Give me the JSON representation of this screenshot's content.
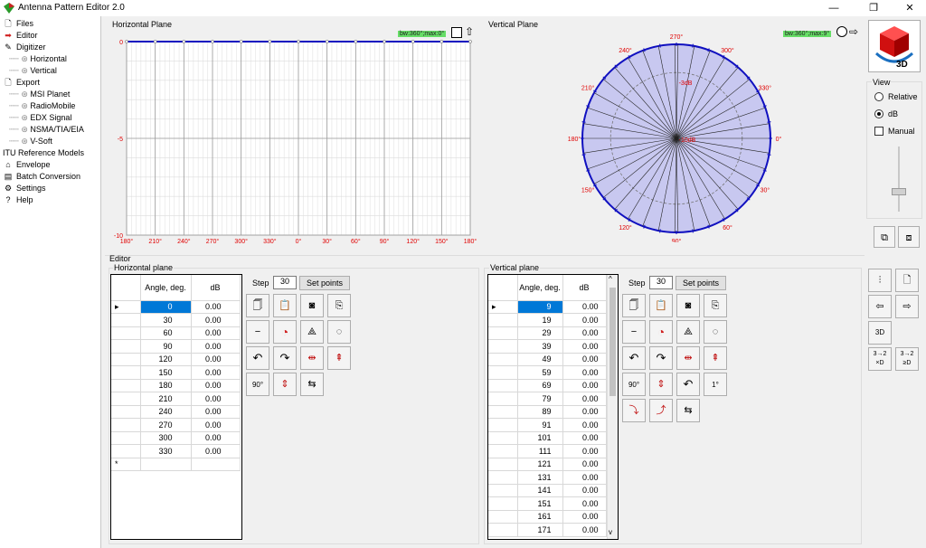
{
  "app": {
    "title": "Antenna Pattern Editor 2.0"
  },
  "window": {
    "min": "—",
    "max": "❐",
    "close": "✕"
  },
  "nav": {
    "files": "Files",
    "editor": "Editor",
    "digitizer": "Digitizer",
    "horizontal": "Horizontal",
    "vertical": "Vertical",
    "export": "Export",
    "msi": "MSI Planet",
    "radiomobile": "RadioMobile",
    "edx": "EDX Signal",
    "nsma": "NSMA/TIA/EIA",
    "vsoft": "V-Soft",
    "itu": "ITU Reference Models",
    "envelope": "Envelope",
    "batch": "Batch Conversion",
    "settings": "Settings",
    "help": "Help"
  },
  "hplane": {
    "title": "Horizontal Plane",
    "badge": "bw:360°;max:0°",
    "y_ticks": [
      "0",
      "-5",
      "-10"
    ],
    "x_ticks": [
      "180°",
      "210°",
      "240°",
      "270°",
      "300°",
      "330°",
      "0°",
      "30°",
      "60°",
      "90°",
      "120°",
      "150°",
      "180°"
    ]
  },
  "vplane": {
    "title": "Vertical Plane",
    "badge": "bw:360°;max:9°",
    "angle_labels": [
      "0°",
      "30°",
      "60°",
      "90°",
      "120°",
      "150°",
      "180°",
      "210°",
      "240°",
      "270°",
      "300°",
      "330°"
    ],
    "ring_labels": [
      "-3dB",
      "-10dB"
    ]
  },
  "view": {
    "title": "View",
    "relative": "Relative",
    "db": "dB",
    "manual": "Manual",
    "three_d": "3D"
  },
  "editor": {
    "title": "Editor",
    "hgroup": "Horizontal plane",
    "vgroup": "Vertical plane",
    "col_angle": "Angle, deg.",
    "col_angle_v": "Angle, deg.",
    "col_db": "dB",
    "step_label": "Step",
    "step_value": "30",
    "set_points": "Set points",
    "h_rows": [
      {
        "angle": "0",
        "db": "0.00"
      },
      {
        "angle": "30",
        "db": "0.00"
      },
      {
        "angle": "60",
        "db": "0.00"
      },
      {
        "angle": "90",
        "db": "0.00"
      },
      {
        "angle": "120",
        "db": "0.00"
      },
      {
        "angle": "150",
        "db": "0.00"
      },
      {
        "angle": "180",
        "db": "0.00"
      },
      {
        "angle": "210",
        "db": "0.00"
      },
      {
        "angle": "240",
        "db": "0.00"
      },
      {
        "angle": "270",
        "db": "0.00"
      },
      {
        "angle": "300",
        "db": "0.00"
      },
      {
        "angle": "330",
        "db": "0.00"
      }
    ],
    "v_rows": [
      {
        "angle": "9",
        "db": "0.00"
      },
      {
        "angle": "19",
        "db": "0.00"
      },
      {
        "angle": "29",
        "db": "0.00"
      },
      {
        "angle": "39",
        "db": "0.00"
      },
      {
        "angle": "49",
        "db": "0.00"
      },
      {
        "angle": "59",
        "db": "0.00"
      },
      {
        "angle": "69",
        "db": "0.00"
      },
      {
        "angle": "79",
        "db": "0.00"
      },
      {
        "angle": "89",
        "db": "0.00"
      },
      {
        "angle": "91",
        "db": "0.00"
      },
      {
        "angle": "101",
        "db": "0.00"
      },
      {
        "angle": "111",
        "db": "0.00"
      },
      {
        "angle": "121",
        "db": "0.00"
      },
      {
        "angle": "131",
        "db": "0.00"
      },
      {
        "angle": "141",
        "db": "0.00"
      },
      {
        "angle": "151",
        "db": "0.00"
      },
      {
        "angle": "161",
        "db": "0.00"
      },
      {
        "angle": "171",
        "db": "0.00"
      }
    ],
    "tool_labels": {
      "minus": "−",
      "arrow_lr": "⇆",
      "deg90": "90°",
      "one": "1°"
    },
    "side_labels": {
      "three_d": "3D",
      "conv1": "3→2 ×D",
      "conv2": "3→2 ≥D"
    }
  },
  "colors": {
    "accent": "#0078d7",
    "curve": "#1010c0",
    "polar_fill": "#c8c8f0",
    "tick_red": "#e00000",
    "badge": "#66dd66"
  }
}
